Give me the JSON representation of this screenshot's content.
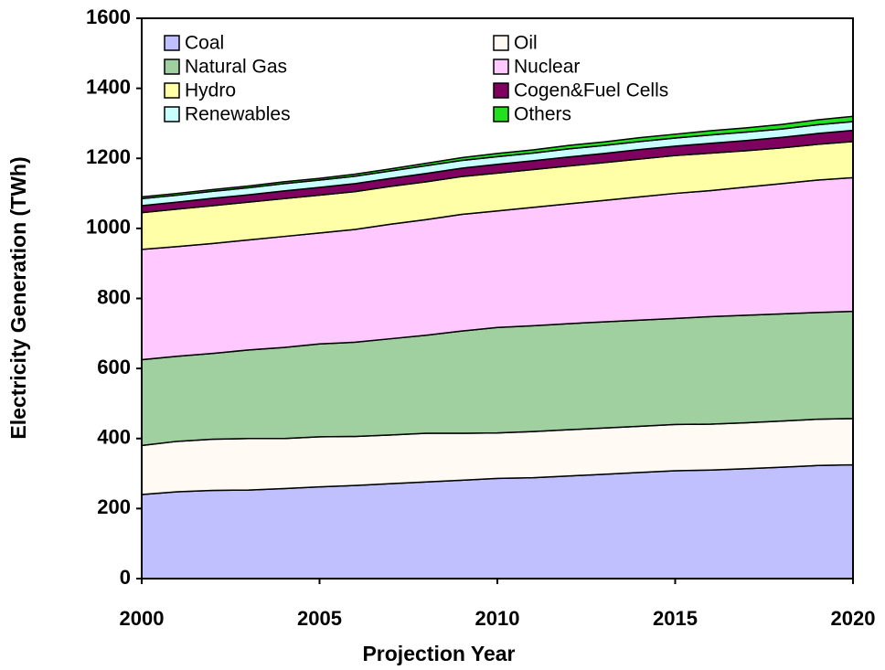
{
  "chart_data": {
    "type": "stacked_area",
    "x_label": "Projection Year",
    "y_label": "Electricity Generation (TWh)",
    "x": [
      2000,
      2001,
      2002,
      2003,
      2004,
      2005,
      2006,
      2007,
      2008,
      2009,
      2010,
      2011,
      2012,
      2013,
      2014,
      2015,
      2016,
      2017,
      2018,
      2019,
      2020
    ],
    "series": [
      {
        "name": "Coal",
        "color": "#c0c0ff",
        "values": [
          240,
          248,
          252,
          253,
          257,
          262,
          266,
          271,
          276,
          281,
          286,
          288,
          293,
          298,
          303,
          308,
          310,
          314,
          318,
          323,
          325
        ]
      },
      {
        "name": "Oil",
        "color": "#fffaf4",
        "values": [
          140,
          144,
          146,
          147,
          143,
          143,
          140,
          139,
          139,
          134,
          130,
          132,
          132,
          132,
          132,
          132,
          131,
          131,
          132,
          132,
          132
        ]
      },
      {
        "name": "Natural Gas",
        "color": "#a0d0a0",
        "values": [
          245,
          243,
          245,
          253,
          260,
          265,
          269,
          275,
          280,
          292,
          301,
          302,
          303,
          303,
          303,
          303,
          307,
          307,
          306,
          305,
          306
        ]
      },
      {
        "name": "Nuclear",
        "color": "#ffc8ff",
        "values": [
          315,
          313,
          314,
          314,
          317,
          317,
          322,
          327,
          330,
          333,
          333,
          338,
          342,
          347,
          352,
          357,
          360,
          366,
          372,
          378,
          382
        ]
      },
      {
        "name": "Hydro",
        "color": "#ffffa8",
        "values": [
          105,
          107,
          108,
          108,
          108,
          108,
          108,
          108,
          108,
          108,
          108,
          108,
          108,
          108,
          108,
          108,
          107,
          104,
          102,
          102,
          103
        ]
      },
      {
        "name": "Cogen&Fuel Cells",
        "color": "#800060",
        "values": [
          20,
          20,
          21,
          21,
          22,
          22,
          23,
          23,
          24,
          24,
          25,
          25,
          26,
          26,
          27,
          27,
          28,
          29,
          30,
          31,
          32
        ]
      },
      {
        "name": "Renewables",
        "color": "#c8ffff",
        "values": [
          20,
          20,
          20,
          20,
          21,
          21,
          21,
          21,
          22,
          22,
          22,
          22,
          23,
          23,
          23,
          23,
          24,
          24,
          24,
          25,
          25
        ]
      },
      {
        "name": "Others",
        "color": "#20e020",
        "values": [
          5,
          5,
          5,
          5,
          5,
          5,
          6,
          6,
          7,
          8,
          9,
          9,
          10,
          10,
          11,
          11,
          12,
          12,
          13,
          14,
          15
        ]
      }
    ],
    "xlim": [
      2000,
      2020
    ],
    "xticks": [
      2000,
      2005,
      2010,
      2015,
      2020
    ],
    "ylim": [
      0,
      1600
    ],
    "yticks": [
      0,
      200,
      400,
      600,
      800,
      1000,
      1200,
      1400,
      1600
    ],
    "legend": "upper left"
  }
}
